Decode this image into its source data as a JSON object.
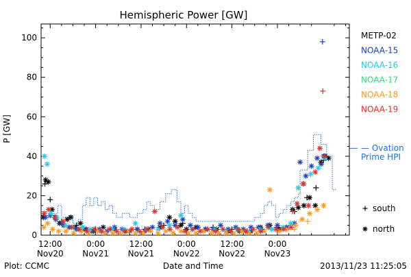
{
  "chart_data": {
    "type": "scatter",
    "title": "Hemispheric Power [GW]",
    "xlabel": "Date and Time",
    "ylabel": "P [GW]",
    "x_unit": "hours since 2013-11-20 00:00 UT",
    "xlim": [
      9.6,
      91.0
    ],
    "ylim": [
      0,
      107
    ],
    "x_ticks": [
      {
        "x": 12,
        "time": "12:00",
        "date": "Nov20"
      },
      {
        "x": 24,
        "time": "0:00",
        "date": "Nov21"
      },
      {
        "x": 36,
        "time": "12:00",
        "date": "Nov21"
      },
      {
        "x": 48,
        "time": "0:00",
        "date": "Nov22"
      },
      {
        "x": 60,
        "time": "12:00",
        "date": "Nov22"
      },
      {
        "x": 72,
        "time": "0:00",
        "date": "Nov23"
      }
    ],
    "y_ticks": [
      0,
      20,
      40,
      60,
      80,
      100
    ],
    "footer_left": "Plot: CCMC",
    "footer_right": "2013/11/23 11:25:05",
    "legend": [
      {
        "name": "METP-02",
        "color": "#000000"
      },
      {
        "name": "NOAA-15",
        "color": "#1f3fbf"
      },
      {
        "name": "NOAA-16",
        "color": "#1ec8f0"
      },
      {
        "name": "NOAA-17",
        "color": "#2ee07a"
      },
      {
        "name": "NOAA-18",
        "color": "#ff9a1a"
      },
      {
        "name": "NOAA-19",
        "color": "#e0302a"
      }
    ],
    "ovation_label": [
      "— Ovation",
      "Prime HPI"
    ],
    "ovation_color": "#1f6fd8",
    "marker_legend": [
      {
        "symbol": "+",
        "label": "south"
      },
      {
        "symbol": "*",
        "label": "north"
      }
    ],
    "ovation_line": [
      [
        9.6,
        12
      ],
      [
        11,
        12
      ],
      [
        11,
        9
      ],
      [
        13,
        9
      ],
      [
        13,
        11
      ],
      [
        14,
        11
      ],
      [
        14,
        15
      ],
      [
        15,
        15
      ],
      [
        15,
        9
      ],
      [
        17,
        9
      ],
      [
        17,
        10
      ],
      [
        18,
        10
      ],
      [
        18,
        6
      ],
      [
        19.5,
        6
      ],
      [
        19.5,
        8
      ],
      [
        20.5,
        8
      ],
      [
        20.5,
        15
      ],
      [
        21.5,
        15
      ],
      [
        21.5,
        19
      ],
      [
        22.5,
        19
      ],
      [
        22.5,
        15
      ],
      [
        23.5,
        15
      ],
      [
        23.5,
        19
      ],
      [
        24.5,
        19
      ],
      [
        24.5,
        15
      ],
      [
        25.5,
        15
      ],
      [
        25.5,
        17
      ],
      [
        26.5,
        17
      ],
      [
        26.5,
        13
      ],
      [
        27.5,
        13
      ],
      [
        27.5,
        15
      ],
      [
        28.5,
        15
      ],
      [
        28.5,
        11
      ],
      [
        29.5,
        11
      ],
      [
        29.5,
        9
      ],
      [
        31,
        9
      ],
      [
        31,
        11
      ],
      [
        33,
        11
      ],
      [
        33,
        9
      ],
      [
        35,
        9
      ],
      [
        35,
        11
      ],
      [
        36.5,
        11
      ],
      [
        36.5,
        13
      ],
      [
        37.5,
        13
      ],
      [
        37.5,
        17
      ],
      [
        38.5,
        17
      ],
      [
        38.5,
        15
      ],
      [
        39.5,
        15
      ],
      [
        39.5,
        13
      ],
      [
        41,
        13
      ],
      [
        41,
        17
      ],
      [
        42.5,
        17
      ],
      [
        42.5,
        21
      ],
      [
        44,
        21
      ],
      [
        44,
        23
      ],
      [
        45.5,
        23
      ],
      [
        45.5,
        17
      ],
      [
        46.5,
        17
      ],
      [
        46.5,
        11
      ],
      [
        47.5,
        11
      ],
      [
        47.5,
        15
      ],
      [
        48.5,
        15
      ],
      [
        48.5,
        11
      ],
      [
        49.5,
        11
      ],
      [
        49.5,
        9
      ],
      [
        50.5,
        9
      ],
      [
        50.5,
        7
      ],
      [
        66,
        7
      ],
      [
        66,
        9
      ],
      [
        67.5,
        9
      ],
      [
        67.5,
        11
      ],
      [
        68.5,
        11
      ],
      [
        68.5,
        15
      ],
      [
        69.5,
        15
      ],
      [
        69.5,
        17
      ],
      [
        70.5,
        17
      ],
      [
        70.5,
        15
      ],
      [
        71.5,
        15
      ],
      [
        71.5,
        9
      ],
      [
        72.5,
        9
      ],
      [
        72.5,
        11
      ],
      [
        73.5,
        11
      ],
      [
        73.5,
        13
      ],
      [
        74.5,
        13
      ],
      [
        74.5,
        15
      ],
      [
        75.5,
        15
      ],
      [
        75.5,
        17
      ],
      [
        76.5,
        17
      ],
      [
        76.5,
        19
      ],
      [
        77.5,
        19
      ],
      [
        77.5,
        21
      ],
      [
        78,
        21
      ],
      [
        78,
        33
      ],
      [
        80,
        33
      ],
      [
        80,
        43
      ],
      [
        81.5,
        43
      ],
      [
        81.5,
        51
      ],
      [
        83.5,
        51
      ],
      [
        83.5,
        46
      ],
      [
        85,
        46
      ],
      [
        85,
        40
      ],
      [
        86.5,
        40
      ],
      [
        86.5,
        23
      ],
      [
        87.5,
        23
      ]
    ],
    "series": [
      {
        "name": "METP-02",
        "marker": "*",
        "points": [
          [
            10.2,
            9
          ],
          [
            10.8,
            28
          ],
          [
            11.5,
            27
          ],
          [
            12.5,
            13
          ],
          [
            13.4,
            9
          ],
          [
            14.5,
            6
          ],
          [
            15.6,
            5
          ],
          [
            16.5,
            8
          ],
          [
            17.4,
            9
          ],
          [
            18.6,
            4
          ],
          [
            20,
            6
          ],
          [
            21.5,
            3
          ],
          [
            23.5,
            2
          ],
          [
            26,
            4
          ],
          [
            29,
            3
          ],
          [
            32,
            2
          ],
          [
            35,
            3
          ],
          [
            38,
            3
          ],
          [
            41,
            4
          ],
          [
            43.5,
            9
          ],
          [
            45,
            7
          ],
          [
            46.5,
            5
          ],
          [
            48,
            3
          ],
          [
            50.5,
            4
          ],
          [
            53,
            3
          ],
          [
            56,
            3
          ],
          [
            59,
            2
          ],
          [
            62,
            2
          ],
          [
            65,
            2
          ],
          [
            67.5,
            4
          ],
          [
            70,
            5
          ],
          [
            72.5,
            3
          ],
          [
            74.5,
            4
          ],
          [
            76,
            13
          ],
          [
            77.5,
            14
          ],
          [
            79,
            15
          ],
          [
            80.5,
            19
          ],
          [
            82,
            15
          ],
          [
            83.5,
            37
          ],
          [
            84.6,
            40
          ],
          [
            85.5,
            39
          ]
        ]
      },
      {
        "name": "METP-02",
        "marker": "+",
        "points": [
          [
            10.6,
            26
          ],
          [
            12,
            18
          ],
          [
            15,
            7
          ],
          [
            19,
            5
          ],
          [
            24,
            3
          ],
          [
            28,
            3
          ],
          [
            33,
            2
          ],
          [
            37,
            3
          ],
          [
            42,
            5
          ],
          [
            47,
            6
          ],
          [
            51,
            4
          ],
          [
            55,
            4
          ],
          [
            60,
            3
          ],
          [
            64,
            2
          ],
          [
            68,
            3
          ],
          [
            72,
            4
          ],
          [
            76.5,
            12
          ],
          [
            79.8,
            19
          ],
          [
            82.2,
            24
          ],
          [
            84.2,
            38
          ]
        ]
      },
      {
        "name": "NOAA-15",
        "marker": "*",
        "points": [
          [
            10.7,
            9
          ],
          [
            12,
            10
          ],
          [
            13.5,
            8
          ],
          [
            15,
            6
          ],
          [
            17,
            4
          ],
          [
            19,
            3
          ],
          [
            21,
            3
          ],
          [
            23,
            2
          ],
          [
            25,
            3
          ],
          [
            27,
            2
          ],
          [
            29,
            4
          ],
          [
            31,
            3
          ],
          [
            33,
            2
          ],
          [
            35,
            3
          ],
          [
            37,
            2
          ],
          [
            39,
            4
          ],
          [
            41,
            6
          ],
          [
            43,
            7
          ],
          [
            45,
            5
          ],
          [
            47,
            8
          ],
          [
            49,
            5
          ],
          [
            51,
            4
          ],
          [
            53,
            3
          ],
          [
            55,
            3
          ],
          [
            57,
            5
          ],
          [
            59,
            3
          ],
          [
            61,
            4
          ],
          [
            63,
            3
          ],
          [
            65,
            4
          ],
          [
            67,
            4
          ],
          [
            69.5,
            5
          ],
          [
            72,
            5
          ],
          [
            74.5,
            4
          ],
          [
            76.5,
            6
          ],
          [
            78,
            37
          ],
          [
            79.5,
            30
          ],
          [
            81,
            35
          ],
          [
            82.5,
            39
          ],
          [
            83.6,
            36
          ],
          [
            84.2,
            40
          ]
        ]
      },
      {
        "name": "NOAA-15",
        "marker": "+",
        "points": [
          [
            83.9,
            98
          ]
        ]
      },
      {
        "name": "NOAA-16",
        "marker": "*",
        "points": [
          [
            10.5,
            40
          ],
          [
            11.2,
            36
          ],
          [
            12.2,
            11
          ],
          [
            13.8,
            9
          ],
          [
            16,
            5
          ],
          [
            18,
            4
          ],
          [
            20.5,
            4
          ],
          [
            22.5,
            3
          ],
          [
            25.5,
            2
          ],
          [
            28.5,
            3
          ],
          [
            31.5,
            3
          ],
          [
            34.5,
            6
          ],
          [
            37.5,
            3
          ],
          [
            40.5,
            3
          ],
          [
            43.5,
            5
          ],
          [
            46.5,
            10
          ],
          [
            49.5,
            3
          ],
          [
            52.5,
            2
          ],
          [
            55.5,
            3
          ],
          [
            58.5,
            2
          ],
          [
            61.5,
            3
          ],
          [
            64.5,
            2
          ],
          [
            67.5,
            3
          ],
          [
            70.5,
            3
          ],
          [
            73.5,
            4
          ],
          [
            75.5,
            6
          ],
          [
            77.5,
            24
          ],
          [
            79,
            26
          ],
          [
            80.8,
            31
          ],
          [
            82.8,
            34
          ],
          [
            84.5,
            39
          ]
        ]
      },
      {
        "name": "NOAA-18",
        "marker": "*",
        "points": [
          [
            10.3,
            4
          ],
          [
            11.3,
            6
          ],
          [
            12.6,
            3
          ],
          [
            14.2,
            2
          ],
          [
            16.2,
            2
          ],
          [
            18.2,
            1
          ],
          [
            20.2,
            2
          ],
          [
            22.2,
            1
          ],
          [
            24.5,
            2
          ],
          [
            26.5,
            1
          ],
          [
            28.5,
            1
          ],
          [
            30.5,
            1
          ],
          [
            32.5,
            2
          ],
          [
            34.5,
            1
          ],
          [
            36.5,
            1
          ],
          [
            38.5,
            2
          ],
          [
            40.5,
            1
          ],
          [
            42.5,
            2
          ],
          [
            44.5,
            1
          ],
          [
            46.5,
            2
          ],
          [
            48.5,
            1
          ],
          [
            50.5,
            1
          ],
          [
            52.5,
            2
          ],
          [
            54.5,
            1
          ],
          [
            56.5,
            1
          ],
          [
            58.5,
            1
          ],
          [
            60.5,
            1
          ],
          [
            62.5,
            2
          ],
          [
            64.5,
            1
          ],
          [
            66.5,
            1
          ],
          [
            68.5,
            2
          ],
          [
            70,
            23
          ],
          [
            72.5,
            2
          ],
          [
            74.5,
            3
          ],
          [
            76.8,
            5
          ],
          [
            78.5,
            8
          ],
          [
            80.5,
            11
          ],
          [
            82.5,
            13
          ],
          [
            84.2,
            15
          ]
        ]
      },
      {
        "name": "NOAA-18",
        "marker": "+",
        "points": [
          [
            76.5,
            3
          ],
          [
            80,
            7
          ]
        ]
      },
      {
        "name": "NOAA-19",
        "marker": "*",
        "points": [
          [
            10.4,
            11
          ],
          [
            11.6,
            13
          ],
          [
            13.2,
            9
          ],
          [
            15.4,
            7
          ],
          [
            17.6,
            4
          ],
          [
            19.6,
            3
          ],
          [
            21.6,
            2
          ],
          [
            23.6,
            3
          ],
          [
            25.6,
            2
          ],
          [
            27.6,
            3
          ],
          [
            29.6,
            2
          ],
          [
            31.6,
            2
          ],
          [
            33.6,
            3
          ],
          [
            35.6,
            2
          ],
          [
            37.6,
            3
          ],
          [
            39.6,
            12
          ],
          [
            41.6,
            4
          ],
          [
            43.6,
            3
          ],
          [
            45.6,
            4
          ],
          [
            47.6,
            2
          ],
          [
            49.6,
            3
          ],
          [
            51.6,
            2
          ],
          [
            53.6,
            3
          ],
          [
            55.6,
            2
          ],
          [
            57.6,
            3
          ],
          [
            59.6,
            2
          ],
          [
            61.6,
            3
          ],
          [
            63.6,
            2
          ],
          [
            65.6,
            3
          ],
          [
            67.6,
            2
          ],
          [
            69.6,
            4
          ],
          [
            71.6,
            3
          ],
          [
            73.6,
            3
          ],
          [
            75.6,
            4
          ],
          [
            77.2,
            16
          ],
          [
            78.8,
            26
          ],
          [
            80.2,
            15
          ],
          [
            82,
            32
          ],
          [
            83.2,
            44
          ],
          [
            84.4,
            40
          ]
        ]
      },
      {
        "name": "NOAA-19",
        "marker": "+",
        "points": [
          [
            76,
            12
          ],
          [
            84,
            73
          ]
        ]
      }
    ]
  }
}
